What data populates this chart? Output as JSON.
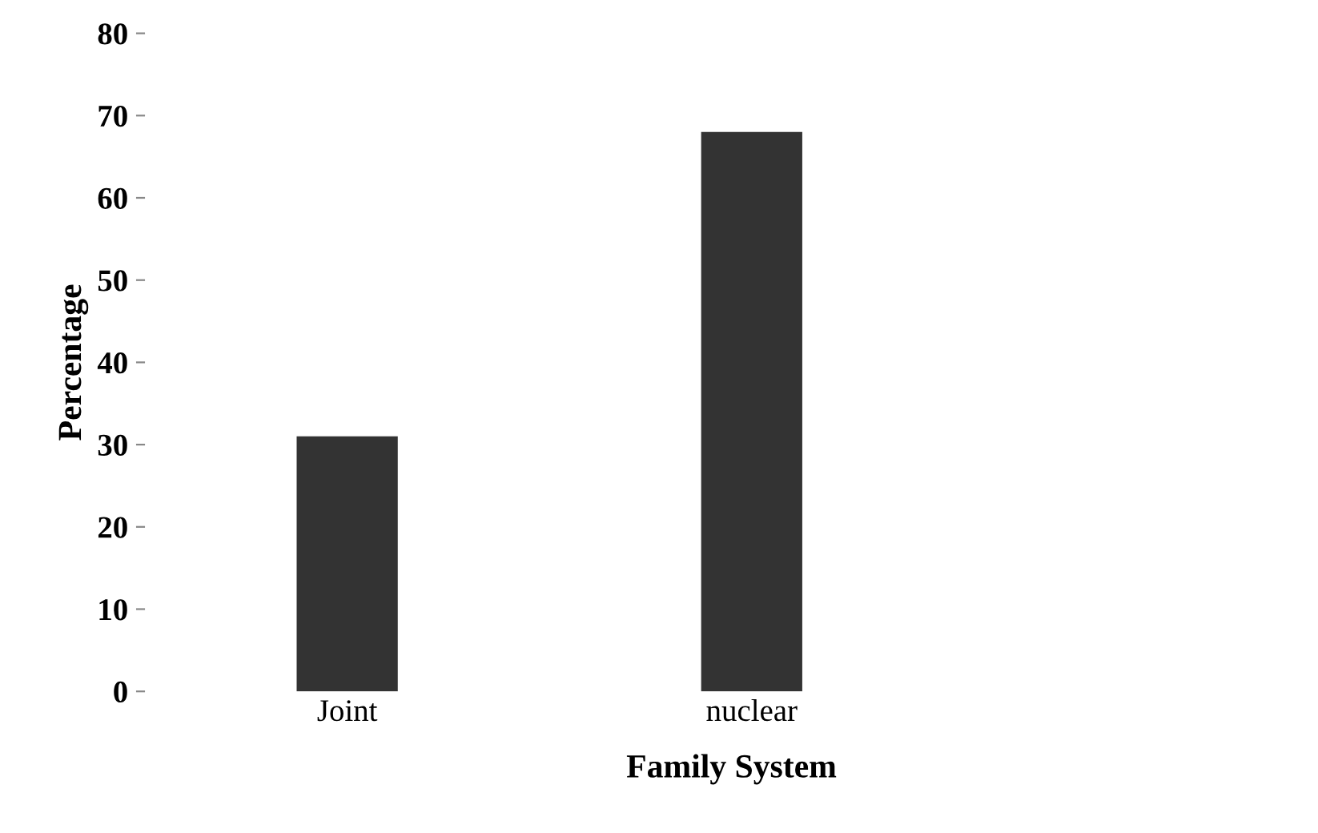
{
  "chart_data": {
    "type": "bar",
    "xlabel": "Family System",
    "ylabel": "Percentage",
    "categories": [
      "Joint",
      "nuclear"
    ],
    "values": [
      31,
      68
    ],
    "color": "#333333",
    "ylim": [
      0,
      80
    ],
    "yticks": [
      0,
      10,
      20,
      30,
      40,
      50,
      60,
      70,
      80
    ],
    "grid": false
  }
}
